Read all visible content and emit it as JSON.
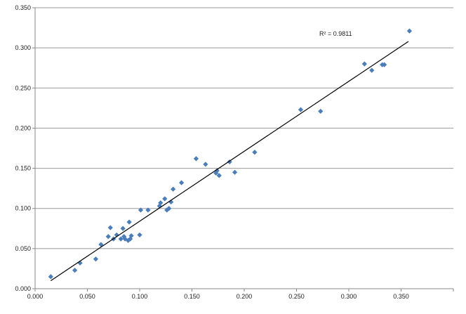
{
  "chart_data": {
    "type": "scatter",
    "title": "",
    "xlabel": "",
    "ylabel": "",
    "xlim": [
      0,
      0.4
    ],
    "ylim": [
      0,
      0.35
    ],
    "x_ticks": [
      "0.000",
      "0.050",
      "0.100",
      "0.150",
      "0.200",
      "0.250",
      "0.300",
      "0.350"
    ],
    "y_ticks": [
      "0.000",
      "0.050",
      "0.100",
      "0.150",
      "0.200",
      "0.250",
      "0.300",
      "0.350"
    ],
    "grid": "horizontal",
    "legend": "none",
    "marker_color": "#4a7ebb",
    "trendline": {
      "x": [
        0.015,
        0.357
      ],
      "y": [
        0.01,
        0.308
      ],
      "color": "#000000"
    },
    "annotation": "R² = 0.9811",
    "points": [
      [
        0.015,
        0.015
      ],
      [
        0.038,
        0.023
      ],
      [
        0.043,
        0.032
      ],
      [
        0.058,
        0.037
      ],
      [
        0.063,
        0.055
      ],
      [
        0.07,
        0.065
      ],
      [
        0.072,
        0.076
      ],
      [
        0.075,
        0.062
      ],
      [
        0.078,
        0.067
      ],
      [
        0.082,
        0.062
      ],
      [
        0.084,
        0.075
      ],
      [
        0.085,
        0.065
      ],
      [
        0.086,
        0.062
      ],
      [
        0.089,
        0.06
      ],
      [
        0.09,
        0.083
      ],
      [
        0.091,
        0.062
      ],
      [
        0.092,
        0.066
      ],
      [
        0.1,
        0.067
      ],
      [
        0.101,
        0.098
      ],
      [
        0.108,
        0.098
      ],
      [
        0.119,
        0.103
      ],
      [
        0.12,
        0.107
      ],
      [
        0.124,
        0.112
      ],
      [
        0.126,
        0.098
      ],
      [
        0.128,
        0.1
      ],
      [
        0.13,
        0.108
      ],
      [
        0.132,
        0.124
      ],
      [
        0.14,
        0.132
      ],
      [
        0.154,
        0.162
      ],
      [
        0.163,
        0.155
      ],
      [
        0.173,
        0.144
      ],
      [
        0.174,
        0.147
      ],
      [
        0.176,
        0.141
      ],
      [
        0.186,
        0.158
      ],
      [
        0.191,
        0.145
      ],
      [
        0.21,
        0.17
      ],
      [
        0.254,
        0.223
      ],
      [
        0.273,
        0.221
      ],
      [
        0.315,
        0.28
      ],
      [
        0.322,
        0.272
      ],
      [
        0.332,
        0.279
      ],
      [
        0.334,
        0.279
      ],
      [
        0.358,
        0.321
      ]
    ]
  }
}
